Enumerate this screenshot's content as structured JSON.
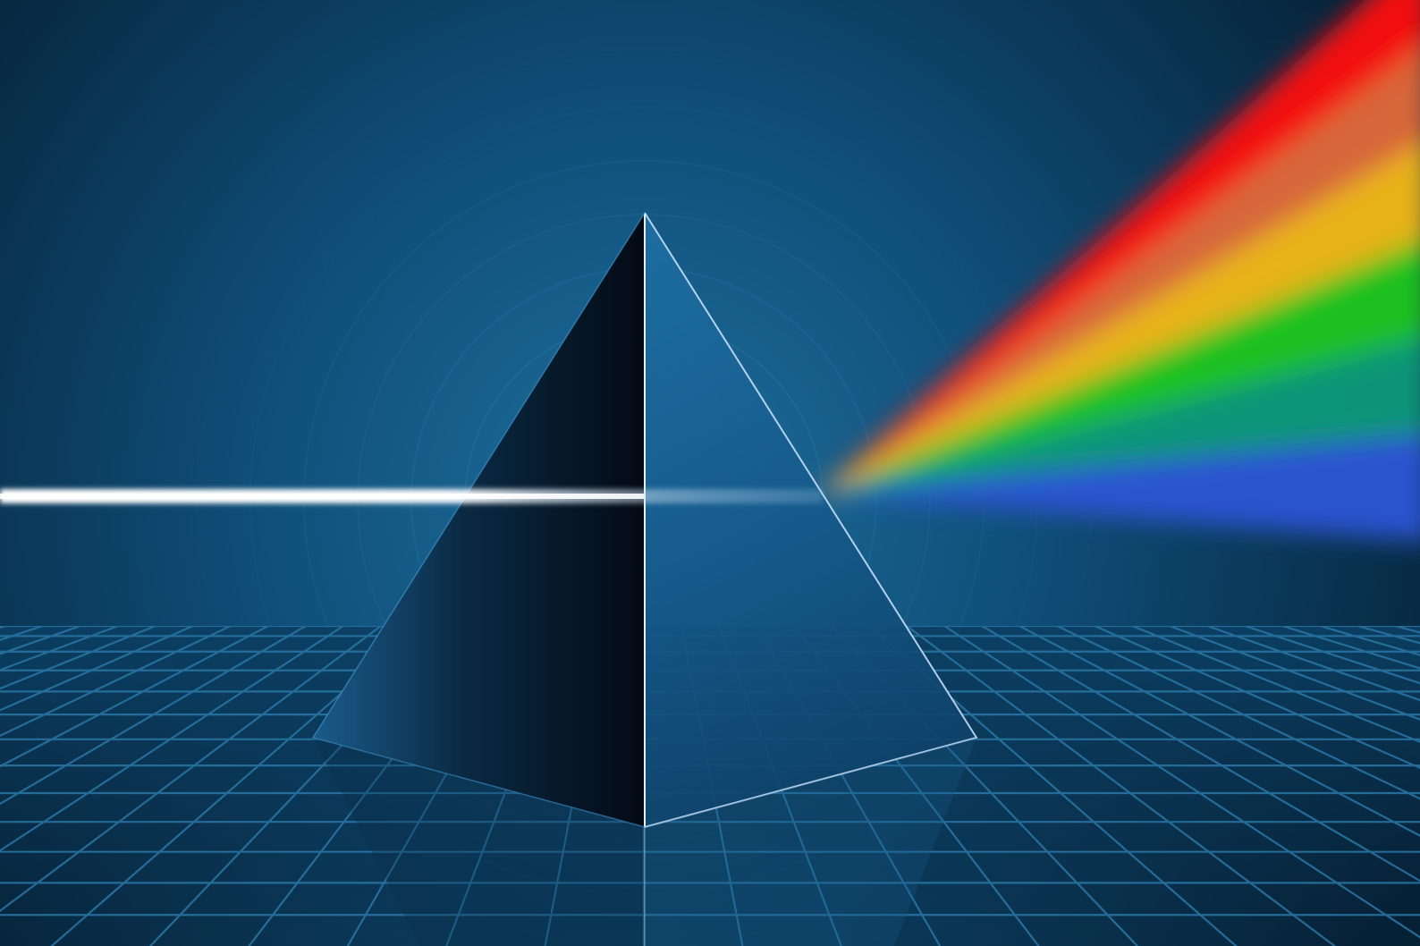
{
  "scene": {
    "subject": "prism-dispersion",
    "colors": {
      "background_center": "#1f6f9e",
      "background_mid": "#0f4e78",
      "background_edge": "#062238",
      "grid_line": "#2a77a6",
      "grid_floor": "#061a2c",
      "beam": "#ffffff",
      "prism_dark_face": "#030a14",
      "prism_light_face": "#15598a",
      "prism_edge": "#cfe6ff"
    },
    "spectrum": [
      "#ff1010",
      "#e26a3a",
      "#f2b818",
      "#1fc81f",
      "#0e9a7a",
      "#2b55d6"
    ]
  }
}
